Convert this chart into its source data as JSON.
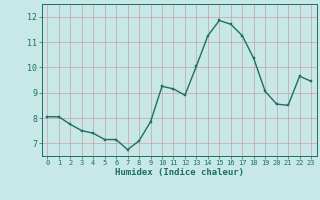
{
  "x": [
    0,
    1,
    2,
    3,
    4,
    5,
    6,
    7,
    8,
    9,
    10,
    11,
    12,
    13,
    14,
    15,
    16,
    17,
    18,
    19,
    20,
    21,
    22,
    23
  ],
  "y": [
    8.05,
    8.05,
    7.75,
    7.5,
    7.4,
    7.15,
    7.15,
    6.75,
    7.1,
    7.85,
    9.25,
    9.15,
    8.9,
    10.05,
    11.25,
    11.85,
    11.7,
    11.25,
    10.35,
    9.05,
    8.55,
    8.5,
    9.65,
    9.45
  ],
  "line_color": "#1a7060",
  "marker_color": "#1a7060",
  "bg_color": "#c8e8e8",
  "grid_color": "#c8a0a0",
  "xlabel": "Humidex (Indice chaleur)",
  "xlim": [
    -0.5,
    23.5
  ],
  "ylim": [
    6.5,
    12.5
  ],
  "yticks": [
    7,
    8,
    9,
    10,
    11,
    12
  ],
  "xticks": [
    0,
    1,
    2,
    3,
    4,
    5,
    6,
    7,
    8,
    9,
    10,
    11,
    12,
    13,
    14,
    15,
    16,
    17,
    18,
    19,
    20,
    21,
    22,
    23
  ],
  "linewidth": 1.0,
  "markersize": 2.0,
  "xlabel_fontsize": 6.5,
  "xtick_fontsize": 5.0,
  "ytick_fontsize": 6.0
}
